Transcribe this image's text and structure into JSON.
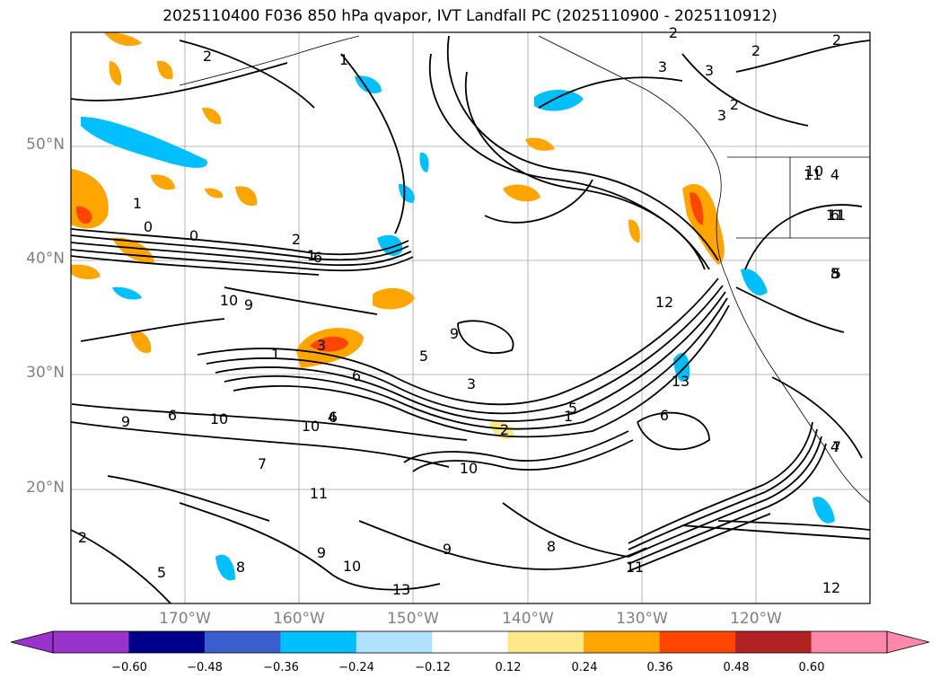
{
  "title": "2025110400 F036 850 hPa qvapor, IVT Landfall PC (2025110900 - 2025110912)",
  "lat_labels": [
    "50°N",
    "40°N",
    "30°N",
    "20°N"
  ],
  "lon_labels": [
    "170°W",
    "160°W",
    "150°W",
    "140°W",
    "130°W",
    "120°W"
  ],
  "map_extent": {
    "lon": [
      -180,
      -110
    ],
    "lat": [
      10,
      60
    ]
  },
  "colorbar": {
    "ticks": [
      "−0.60",
      "−0.48",
      "−0.36",
      "−0.24",
      "−0.12",
      "0.12",
      "0.24",
      "0.36",
      "0.48",
      "0.60"
    ],
    "colors": [
      "#9933cc",
      "#00008b",
      "#3a5fcd",
      "#00bfff",
      "#b0e2ff",
      "#ffffff",
      "#ffe88a",
      "#ffa500",
      "#ff4500",
      "#b22222",
      "#ff88aa"
    ]
  },
  "contour_labels": [
    "2",
    "2",
    "2",
    "3",
    "3",
    "2",
    "3",
    "2",
    "1",
    "1",
    "0",
    "0",
    "2",
    "1",
    "6",
    "9",
    "10",
    "9",
    "5",
    "1",
    "3",
    "3",
    "4",
    "6",
    "6",
    "1",
    "5",
    "2",
    "6",
    "10",
    "9",
    "10",
    "7",
    "10",
    "6",
    "8",
    "11",
    "10",
    "9",
    "8",
    "5",
    "2",
    "9",
    "11",
    "13",
    "12",
    "12",
    "13",
    "10",
    "11",
    "8",
    "7",
    "11",
    "11",
    "5",
    "4",
    "4",
    "6",
    "5"
  ]
}
